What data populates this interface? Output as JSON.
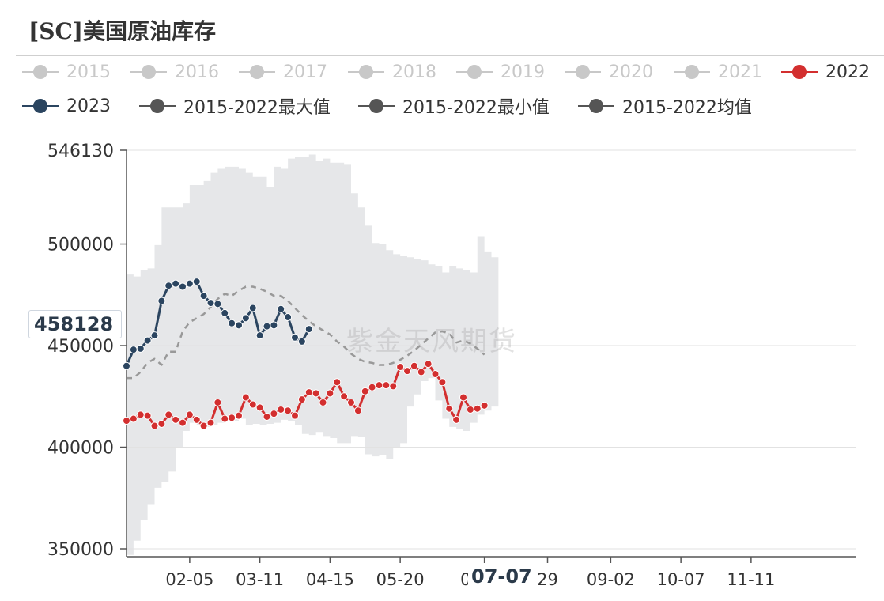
{
  "chart_data": {
    "type": "line",
    "title": "[SC]美国原油库存",
    "ylim": [
      350000,
      546130
    ],
    "y_ticks": [
      "546130",
      "500000",
      "450000",
      "400000",
      "350000"
    ],
    "x_ticks": [
      "02-05",
      "03-11",
      "04-15",
      "05-20",
      "07-07",
      "29",
      "09-02",
      "10-07",
      "11-11"
    ],
    "x_tick_index": [
      9,
      19,
      29,
      39,
      51,
      60,
      69,
      79,
      89
    ],
    "n_weeks": 105,
    "legend": [
      {
        "label": "2015",
        "color": "#c8c8c8",
        "active": false
      },
      {
        "label": "2016",
        "color": "#c8c8c8",
        "active": false
      },
      {
        "label": "2017",
        "color": "#c8c8c8",
        "active": false
      },
      {
        "label": "2018",
        "color": "#c8c8c8",
        "active": false
      },
      {
        "label": "2019",
        "color": "#c8c8c8",
        "active": false
      },
      {
        "label": "2020",
        "color": "#c8c8c8",
        "active": false
      },
      {
        "label": "2021",
        "color": "#c8c8c8",
        "active": false
      },
      {
        "label": "2022",
        "color": "#d32f2f",
        "active": true
      },
      {
        "label": "2023",
        "color": "#2b4560",
        "active": true
      },
      {
        "label": "2015-2022最大值",
        "color": "#555555",
        "active": true
      },
      {
        "label": "2015-2022最小值",
        "color": "#555555",
        "active": true
      },
      {
        "label": "2015-2022均值",
        "color": "#555555",
        "active": true
      }
    ],
    "series": [
      {
        "name": "2022",
        "color": "#d32f2f",
        "values": [
          413000,
          414000,
          416000,
          415500,
          410500,
          411500,
          416000,
          413500,
          412000,
          416000,
          413500,
          410500,
          412000,
          422000,
          414000,
          414500,
          415500,
          424500,
          421000,
          419500,
          415000,
          416500,
          418500,
          418000,
          415500,
          423500,
          427000,
          426500,
          422000,
          426500,
          432000,
          425000,
          422000,
          418000,
          427500,
          429500,
          430500,
          430500,
          430000,
          439500,
          437500,
          440000,
          437000,
          441000,
          436000,
          432000,
          419000,
          413500,
          424500,
          418500,
          419000,
          420500
        ]
      },
      {
        "name": "2023",
        "color": "#2b4560",
        "values": [
          440000,
          448000,
          448500,
          452500,
          455000,
          472000,
          479500,
          480500,
          479000,
          480500,
          481500,
          474500,
          471000,
          470500,
          466000,
          461000,
          460000,
          463500,
          468500,
          455000,
          459500,
          460000,
          468000,
          464000,
          454000,
          452000,
          458128
        ]
      },
      {
        "name": "2015-2022均值",
        "color": "#999999",
        "dashed": true,
        "values": [
          434000,
          434000,
          437000,
          441500,
          443500,
          440500,
          447000,
          447000,
          457000,
          461500,
          463500,
          465500,
          469000,
          473000,
          475500,
          474500,
          477000,
          479000,
          479000,
          478000,
          476500,
          474500,
          474500,
          472000,
          468500,
          465000,
          462000,
          459500,
          457500,
          455500,
          452000,
          449500,
          446000,
          443500,
          442000,
          441500,
          440500,
          440500,
          441500,
          443000,
          445000,
          447500,
          450500,
          453500,
          456500,
          457000,
          456000,
          451500,
          452500,
          451000,
          448500,
          445500
        ]
      },
      {
        "name": "2015-2022最大值",
        "color": "#d9d9d9",
        "values": [
          485000,
          484000,
          487000,
          488000,
          499500,
          518000,
          518000,
          518000,
          520000,
          529000,
          529000,
          531000,
          535000,
          537000,
          538000,
          538000,
          537000,
          535000,
          533000,
          533000,
          528000,
          538000,
          537000,
          542000,
          543000,
          543000,
          544000,
          541000,
          542000,
          540000,
          540000,
          539000,
          525000,
          518000,
          509000,
          500500,
          500000,
          497000,
          495000,
          494000,
          493500,
          492500,
          492000,
          490000,
          489000,
          486000,
          489000,
          488000,
          487000,
          486000,
          503500,
          496000,
          493500
        ]
      },
      {
        "name": "2015-2022最小值",
        "color": "#d9d9d9",
        "values": [
          347000,
          354000,
          364000,
          372000,
          380000,
          383000,
          388000,
          400000,
          408000,
          412000,
          411000,
          410000,
          411000,
          412000,
          413500,
          413000,
          414000,
          411000,
          411500,
          411000,
          411500,
          412000,
          413500,
          413000,
          411000,
          406500,
          406000,
          407500,
          405500,
          404500,
          402000,
          402000,
          405500,
          405000,
          396500,
          395500,
          396000,
          394000,
          400000,
          402000,
          420000,
          426000,
          432500,
          434000,
          423000,
          414000,
          410000,
          409000,
          408000,
          412000,
          416000,
          418000,
          420000
        ]
      }
    ],
    "hover": {
      "index": 26,
      "x_label": "07-07",
      "value": "458128"
    },
    "watermark": "紫金天风期货",
    "grid": true
  }
}
